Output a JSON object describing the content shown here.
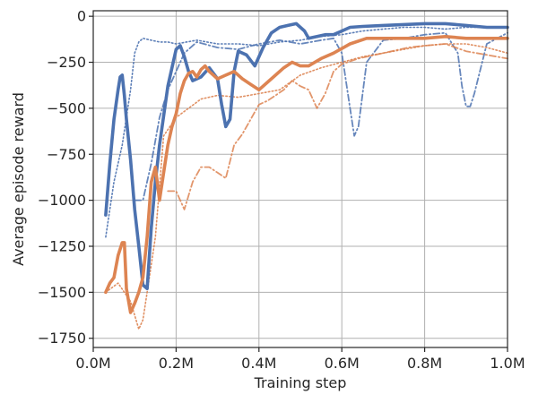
{
  "chart_data": {
    "type": "line",
    "title": "",
    "xlabel": "Training step",
    "ylabel": "Average episode reward",
    "xlim": [
      0,
      1.0
    ],
    "ylim": [
      -1800,
      30
    ],
    "x_unit": "M steps",
    "grid": true,
    "legend": "none",
    "x_ticks": [
      0,
      0.2,
      0.4,
      0.6,
      0.8,
      1.0
    ],
    "x_tick_labels": [
      "0.0M",
      "0.2M",
      "0.4M",
      "0.6M",
      "0.8M",
      "1.0M"
    ],
    "y_ticks": [
      0,
      -250,
      -500,
      -750,
      -1000,
      -1250,
      -1500,
      -1750
    ],
    "y_tick_labels": [
      "0",
      "−250",
      "−500",
      "−750",
      "−1000",
      "−1250",
      "−1500",
      "−1750"
    ],
    "colors": {
      "blue": "#4C72B0",
      "orange": "#DD8452"
    },
    "series": [
      {
        "color": "#4C72B0",
        "style": "solid",
        "x": [
          0.03,
          0.04,
          0.05,
          0.06,
          0.065,
          0.07,
          0.075,
          0.08,
          0.09,
          0.1,
          0.11,
          0.12,
          0.13,
          0.14,
          0.15,
          0.16,
          0.18,
          0.2,
          0.21,
          0.22,
          0.23,
          0.24,
          0.26,
          0.28,
          0.3,
          0.31,
          0.32,
          0.33,
          0.34,
          0.35,
          0.37,
          0.39,
          0.41,
          0.43,
          0.45,
          0.47,
          0.49,
          0.5,
          0.51,
          0.52,
          0.54,
          0.56,
          0.58,
          0.6,
          0.62,
          0.65,
          0.7,
          0.75,
          0.8,
          0.85,
          0.9,
          0.95,
          1.0
        ],
        "y": [
          -1080,
          -800,
          -560,
          -400,
          -330,
          -320,
          -430,
          -560,
          -780,
          -1050,
          -1250,
          -1460,
          -1480,
          -1150,
          -900,
          -700,
          -380,
          -180,
          -160,
          -220,
          -300,
          -350,
          -330,
          -280,
          -340,
          -480,
          -600,
          -560,
          -300,
          -190,
          -210,
          -270,
          -170,
          -90,
          -60,
          -50,
          -40,
          -60,
          -80,
          -120,
          -110,
          -100,
          -100,
          -80,
          -60,
          -55,
          -50,
          -45,
          -40,
          -40,
          -50,
          -60,
          -60
        ]
      },
      {
        "color": "#DD8452",
        "style": "solid",
        "x": [
          0.03,
          0.04,
          0.05,
          0.06,
          0.07,
          0.075,
          0.08,
          0.09,
          0.1,
          0.11,
          0.12,
          0.13,
          0.14,
          0.15,
          0.16,
          0.17,
          0.18,
          0.19,
          0.2,
          0.21,
          0.22,
          0.23,
          0.24,
          0.25,
          0.26,
          0.27,
          0.28,
          0.3,
          0.32,
          0.34,
          0.36,
          0.38,
          0.4,
          0.42,
          0.44,
          0.46,
          0.48,
          0.5,
          0.52,
          0.55,
          0.58,
          0.62,
          0.66,
          0.7,
          0.75,
          0.8,
          0.85,
          0.9,
          0.95,
          1.0
        ],
        "y": [
          -1500,
          -1450,
          -1420,
          -1300,
          -1230,
          -1230,
          -1480,
          -1610,
          -1560,
          -1500,
          -1420,
          -1200,
          -900,
          -820,
          -1000,
          -850,
          -700,
          -600,
          -530,
          -420,
          -350,
          -310,
          -300,
          -330,
          -290,
          -270,
          -300,
          -340,
          -320,
          -300,
          -340,
          -370,
          -400,
          -360,
          -320,
          -280,
          -250,
          -270,
          -270,
          -230,
          -200,
          -150,
          -120,
          -120,
          -120,
          -120,
          -110,
          -120,
          -120,
          -120
        ]
      },
      {
        "color": "#4C72B0",
        "style": "dotted",
        "x": [
          0.03,
          0.05,
          0.07,
          0.09,
          0.1,
          0.11,
          0.12,
          0.14,
          0.16,
          0.18,
          0.2,
          0.25,
          0.3,
          0.35,
          0.4,
          0.45,
          0.5,
          0.55,
          0.6,
          0.65,
          0.7,
          0.75,
          0.8,
          0.85,
          0.9,
          0.95,
          1.0
        ],
        "y": [
          -1200,
          -900,
          -700,
          -400,
          -200,
          -140,
          -120,
          -130,
          -140,
          -140,
          -150,
          -130,
          -150,
          -150,
          -160,
          -140,
          -130,
          -110,
          -100,
          -80,
          -70,
          -60,
          -60,
          -70,
          -60,
          -60,
          -60
        ]
      },
      {
        "color": "#4C72B0",
        "style": "dashdot",
        "x": [
          0.1,
          0.12,
          0.14,
          0.16,
          0.18,
          0.2,
          0.22,
          0.25,
          0.3,
          0.35,
          0.4,
          0.45,
          0.5,
          0.55,
          0.58,
          0.6,
          0.62,
          0.63,
          0.64,
          0.66,
          0.7,
          0.75,
          0.8,
          0.85,
          0.88,
          0.89,
          0.9,
          0.91,
          0.92,
          0.95,
          1.0
        ],
        "y": [
          -1000,
          -1000,
          -800,
          -550,
          -400,
          -300,
          -200,
          -140,
          -170,
          -180,
          -150,
          -130,
          -150,
          -130,
          -120,
          -200,
          -500,
          -650,
          -600,
          -250,
          -130,
          -120,
          -100,
          -90,
          -200,
          -380,
          -490,
          -490,
          -420,
          -150,
          -90
        ]
      },
      {
        "color": "#DD8452",
        "style": "dotted",
        "x": [
          0.03,
          0.06,
          0.09,
          0.11,
          0.12,
          0.13,
          0.15,
          0.17,
          0.2,
          0.23,
          0.26,
          0.3,
          0.35,
          0.4,
          0.45,
          0.5,
          0.55,
          0.6,
          0.65,
          0.7,
          0.75,
          0.8,
          0.85,
          0.9,
          0.95,
          1.0
        ],
        "y": [
          -1500,
          -1450,
          -1550,
          -1700,
          -1650,
          -1500,
          -1200,
          -650,
          -550,
          -500,
          -450,
          -430,
          -440,
          -420,
          -400,
          -320,
          -280,
          -250,
          -220,
          -200,
          -180,
          -160,
          -150,
          -150,
          -170,
          -200
        ]
      },
      {
        "color": "#DD8452",
        "style": "dashdot",
        "x": [
          0.18,
          0.2,
          0.22,
          0.24,
          0.26,
          0.28,
          0.3,
          0.32,
          0.34,
          0.36,
          0.38,
          0.4,
          0.42,
          0.44,
          0.46,
          0.48,
          0.5,
          0.52,
          0.54,
          0.55,
          0.56,
          0.58,
          0.6,
          0.64,
          0.68,
          0.72,
          0.76,
          0.8,
          0.85,
          0.9,
          0.95,
          1.0
        ],
        "y": [
          -950,
          -950,
          -1050,
          -900,
          -820,
          -820,
          -850,
          -880,
          -700,
          -640,
          -560,
          -480,
          -460,
          -430,
          -400,
          -350,
          -380,
          -400,
          -500,
          -460,
          -420,
          -300,
          -260,
          -230,
          -210,
          -190,
          -170,
          -160,
          -150,
          -190,
          -210,
          -230
        ]
      }
    ]
  }
}
